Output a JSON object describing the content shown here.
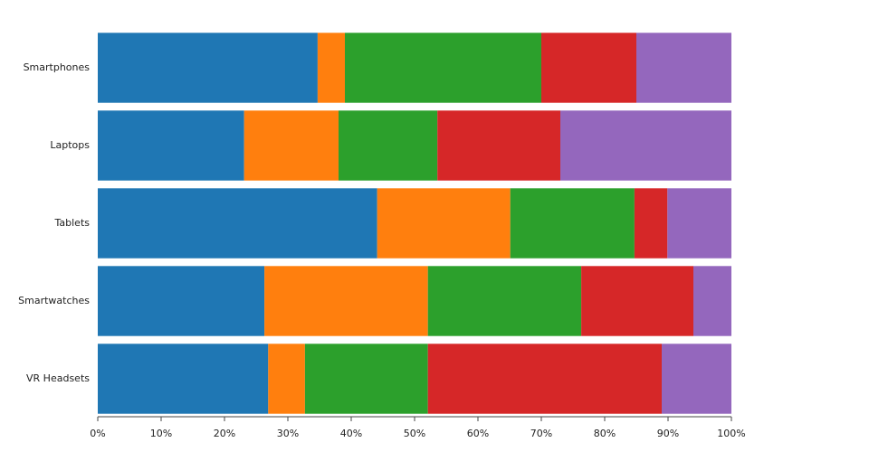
{
  "chart_data": {
    "type": "bar",
    "orientation": "horizontal",
    "stacked": true,
    "categories": [
      "Smartphones",
      "Laptops",
      "Tablets",
      "Smartwatches",
      "VR Headsets"
    ],
    "series": [
      {
        "color": "#1f77b4",
        "values": [
          34.7,
          23.1,
          44.1,
          26.3,
          26.9
        ]
      },
      {
        "color": "#ff7f0e",
        "values": [
          4.3,
          14.9,
          21.0,
          25.8,
          5.8
        ]
      },
      {
        "color": "#2ca02c",
        "values": [
          31.0,
          15.6,
          19.6,
          24.2,
          19.4
        ]
      },
      {
        "color": "#d62728",
        "values": [
          15.0,
          19.4,
          5.2,
          17.7,
          36.9
        ]
      },
      {
        "color": "#9467bd",
        "values": [
          15.0,
          27.0,
          10.1,
          6.0,
          11.0
        ]
      }
    ],
    "xlim": [
      0,
      100
    ],
    "xticks": [
      {
        "value": 0,
        "label": "0%"
      },
      {
        "value": 10,
        "label": "10%"
      },
      {
        "value": 20,
        "label": "20%"
      },
      {
        "value": 30,
        "label": "30%"
      },
      {
        "value": 40,
        "label": "40%"
      },
      {
        "value": 50,
        "label": "50%"
      },
      {
        "value": 60,
        "label": "60%"
      },
      {
        "value": 70,
        "label": "70%"
      },
      {
        "value": 80,
        "label": "80%"
      },
      {
        "value": 90,
        "label": "90%"
      },
      {
        "value": 100,
        "label": "100%"
      }
    ]
  }
}
